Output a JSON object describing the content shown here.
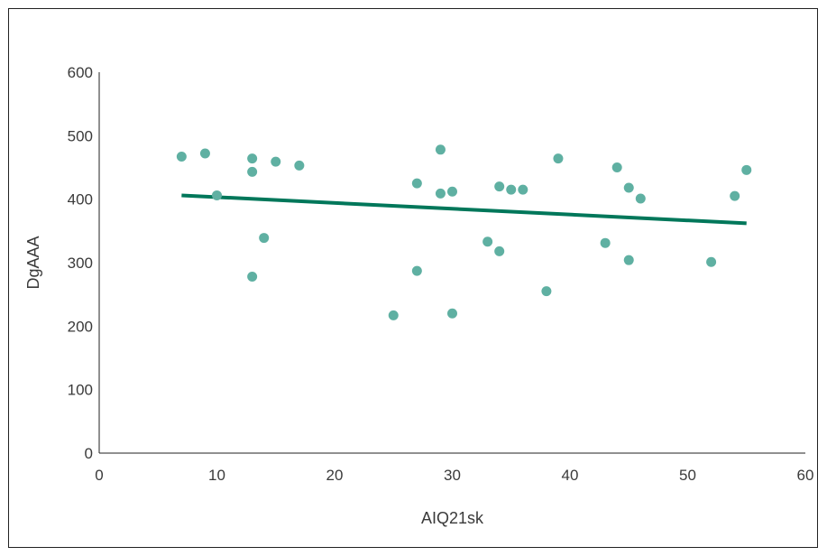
{
  "chart_data": {
    "type": "scatter",
    "title": "",
    "xlabel": "AIQ21sk",
    "ylabel": "DgAAA",
    "xlim": [
      0,
      60
    ],
    "ylim": [
      0,
      600
    ],
    "x_ticks": [
      0,
      10,
      20,
      30,
      40,
      50,
      60
    ],
    "y_ticks": [
      0,
      100,
      200,
      300,
      400,
      500,
      600
    ],
    "grid": false,
    "legend": "none",
    "colors": {
      "points": "#5fb0a2",
      "trendline": "#00775a",
      "axis": "#222222"
    },
    "series": [
      {
        "points": [
          {
            "x": 7,
            "y": 467
          },
          {
            "x": 9,
            "y": 472
          },
          {
            "x": 10,
            "y": 406
          },
          {
            "x": 13,
            "y": 464
          },
          {
            "x": 13,
            "y": 443
          },
          {
            "x": 13,
            "y": 278
          },
          {
            "x": 14,
            "y": 339
          },
          {
            "x": 15,
            "y": 459
          },
          {
            "x": 17,
            "y": 453
          },
          {
            "x": 25,
            "y": 217
          },
          {
            "x": 27,
            "y": 425
          },
          {
            "x": 27,
            "y": 287
          },
          {
            "x": 29,
            "y": 478
          },
          {
            "x": 29,
            "y": 409
          },
          {
            "x": 30,
            "y": 412
          },
          {
            "x": 30,
            "y": 220
          },
          {
            "x": 33,
            "y": 333
          },
          {
            "x": 34,
            "y": 420
          },
          {
            "x": 34,
            "y": 318
          },
          {
            "x": 35,
            "y": 415
          },
          {
            "x": 36,
            "y": 415
          },
          {
            "x": 38,
            "y": 255
          },
          {
            "x": 39,
            "y": 464
          },
          {
            "x": 43,
            "y": 331
          },
          {
            "x": 44,
            "y": 450
          },
          {
            "x": 45,
            "y": 418
          },
          {
            "x": 45,
            "y": 304
          },
          {
            "x": 46,
            "y": 401
          },
          {
            "x": 52,
            "y": 301
          },
          {
            "x": 54,
            "y": 405
          },
          {
            "x": 55,
            "y": 446
          }
        ]
      }
    ],
    "trendline": {
      "x": [
        7,
        55
      ],
      "y": [
        406,
        362
      ]
    }
  }
}
